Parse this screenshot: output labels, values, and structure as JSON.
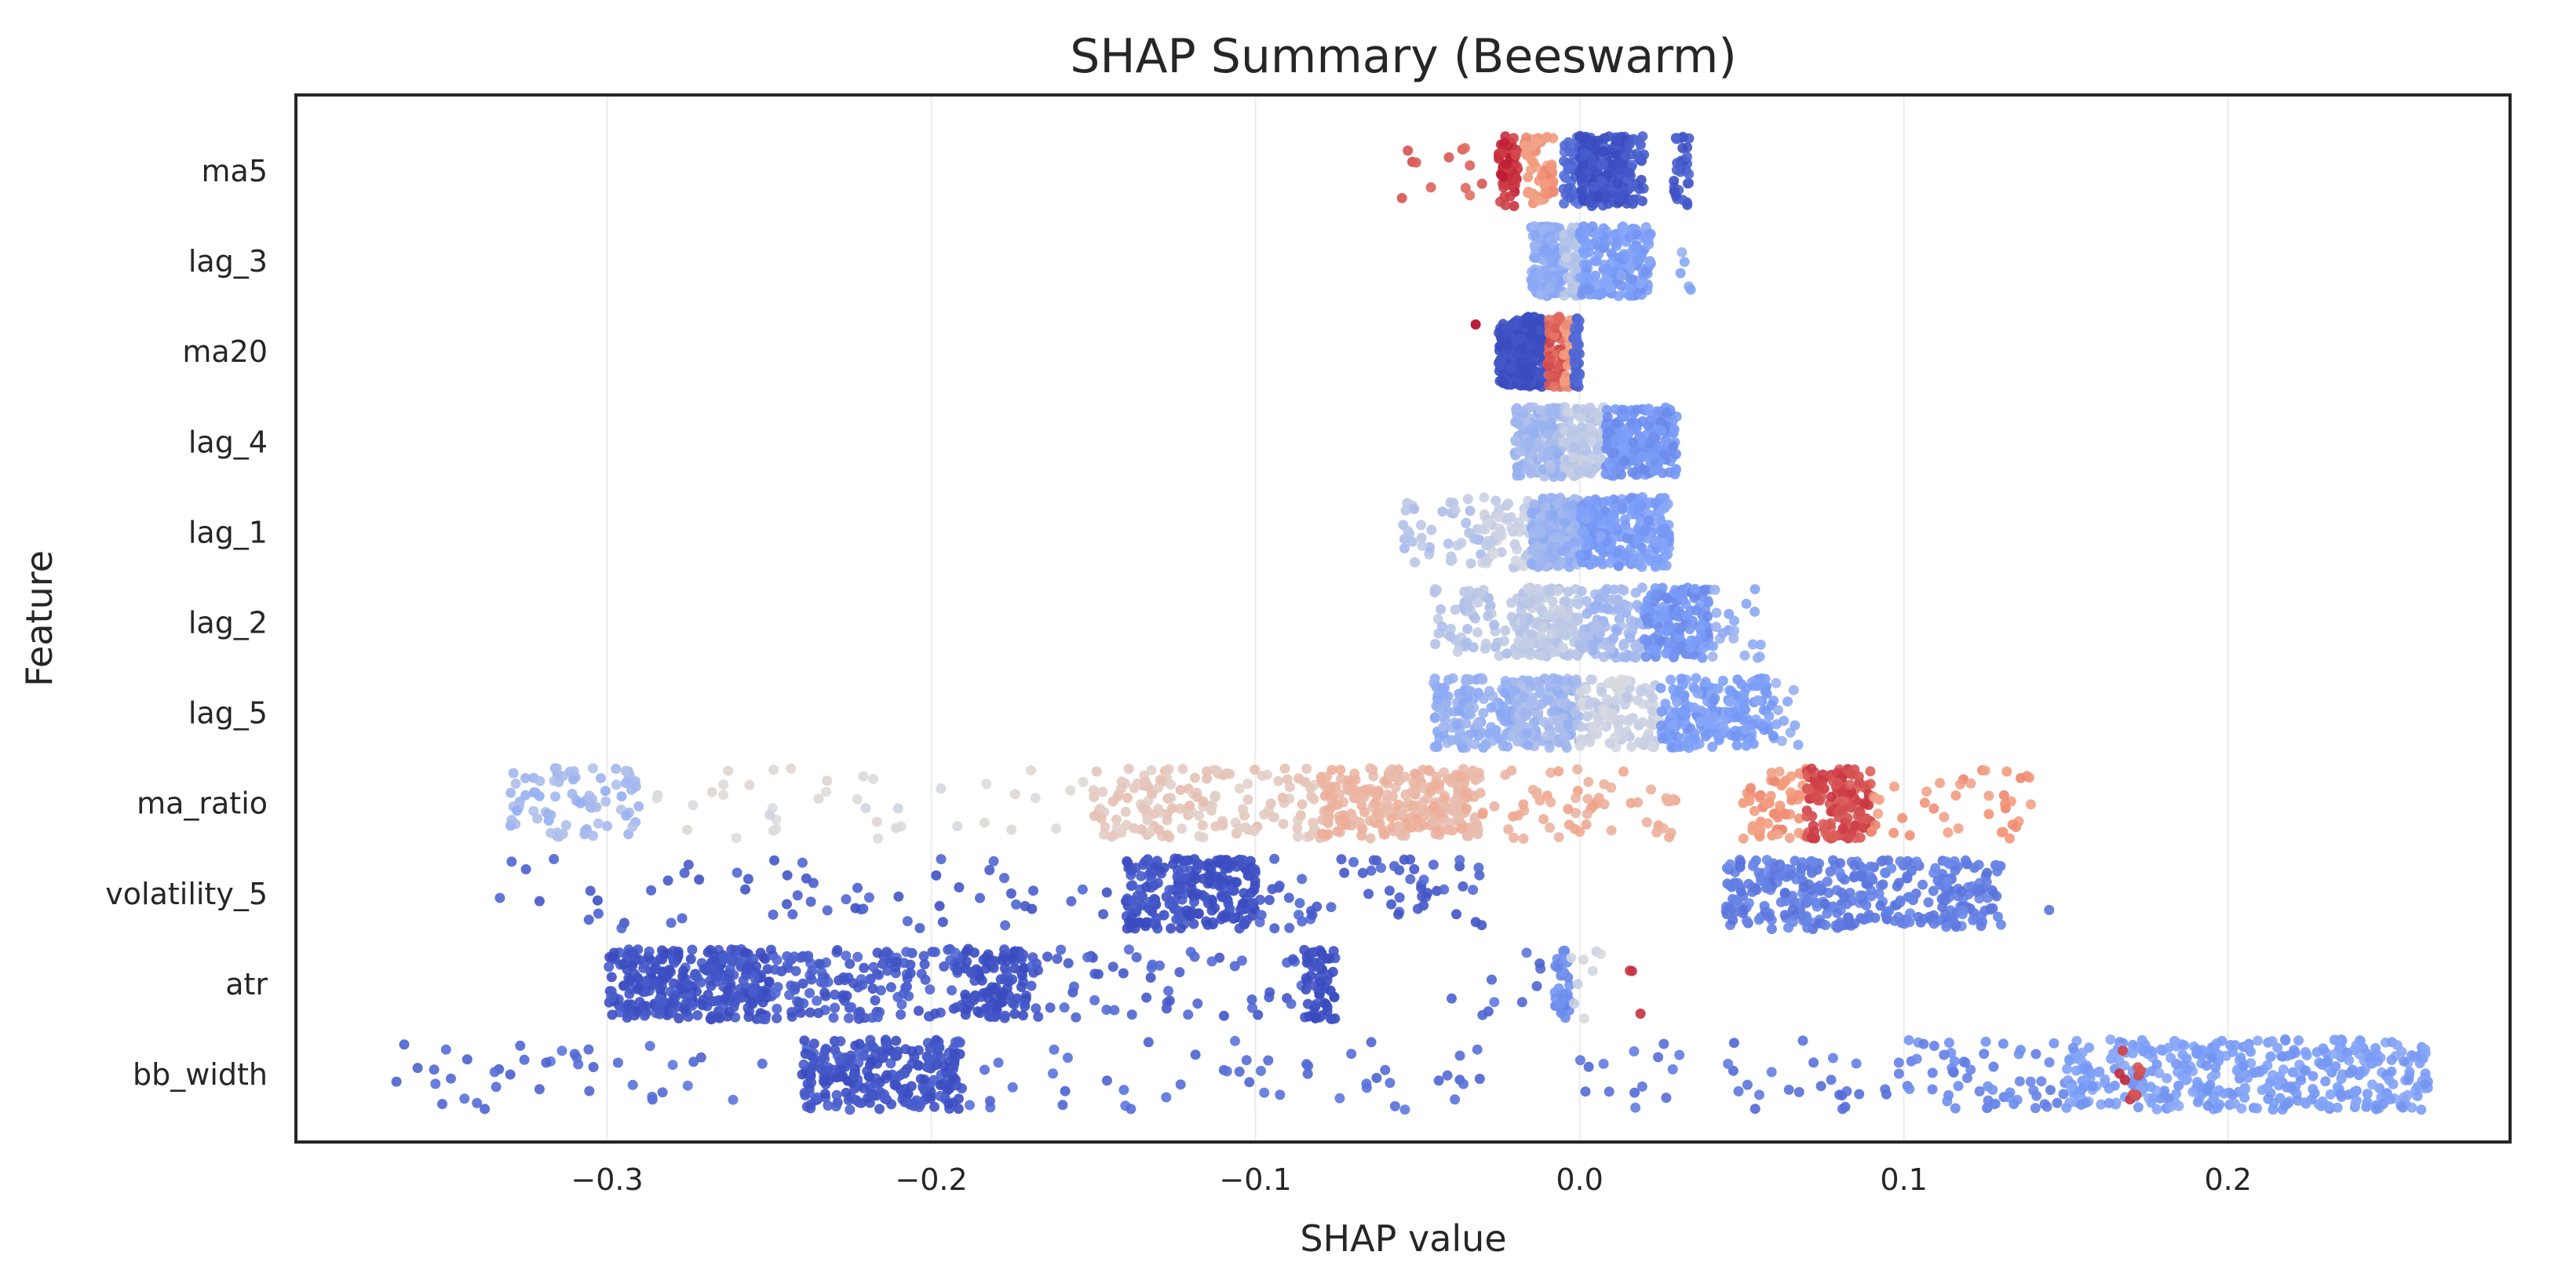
{
  "chart_data": {
    "type": "scatter",
    "subtype": "beeswarm",
    "title": "SHAP Summary (Beeswarm)",
    "xlabel": "SHAP value",
    "ylabel": "Feature",
    "xlim": [
      -0.396,
      0.287
    ],
    "xticks": [
      -0.3,
      -0.2,
      -0.1,
      0.0,
      0.1,
      0.2
    ],
    "xtick_labels": [
      "−0.3",
      "−0.2",
      "−0.1",
      "0.0",
      "0.1",
      "0.2"
    ],
    "grid": "vertical",
    "colormap": {
      "name": "coolwarm",
      "low": "#3b4cc0",
      "mid": "#dddddd",
      "high": "#b40426"
    },
    "features": [
      {
        "name": "ma5",
        "clusters": [
          {
            "range": [
              -0.06,
              -0.03
            ],
            "n": 12,
            "color_value": 0.85
          },
          {
            "range": [
              -0.025,
              -0.019
            ],
            "n": 60,
            "color_value": 0.92
          },
          {
            "range": [
              -0.017,
              -0.008
            ],
            "n": 60,
            "color_value": 0.75
          },
          {
            "range": [
              -0.005,
              0.0
            ],
            "n": 40,
            "color_value": 0.1
          },
          {
            "range": [
              0.0,
              0.015
            ],
            "n": 200,
            "color_value": 0.02
          },
          {
            "range": [
              0.015,
              0.02
            ],
            "n": 30,
            "color_value": 0.05
          },
          {
            "range": [
              0.029,
              0.034
            ],
            "n": 30,
            "color_value": 0.05
          }
        ]
      },
      {
        "name": "lag_3",
        "clusters": [
          {
            "range": [
              -0.015,
              -0.005
            ],
            "n": 150,
            "color_value": 0.3
          },
          {
            "range": [
              -0.005,
              0.0
            ],
            "n": 60,
            "color_value": 0.4
          },
          {
            "range": [
              0.0,
              0.022
            ],
            "n": 200,
            "color_value": 0.25
          },
          {
            "range": [
              0.028,
              0.035
            ],
            "n": 5,
            "color_value": 0.3
          }
        ]
      },
      {
        "name": "ma20",
        "clusters": [
          {
            "range": [
              -0.025,
              -0.01
            ],
            "n": 250,
            "color_value": 0.0
          },
          {
            "range": [
              -0.01,
              -0.005
            ],
            "n": 60,
            "color_value": 0.85
          },
          {
            "range": [
              -0.005,
              -0.002
            ],
            "n": 30,
            "color_value": 0.75
          },
          {
            "range": [
              -0.002,
              0.0
            ],
            "n": 40,
            "color_value": 0.08
          },
          {
            "range": [
              -0.033,
              -0.031
            ],
            "n": 1,
            "color_value": 0.98
          }
        ]
      },
      {
        "name": "lag_4",
        "clusters": [
          {
            "range": [
              -0.02,
              -0.005
            ],
            "n": 200,
            "color_value": 0.35
          },
          {
            "range": [
              -0.005,
              0.008
            ],
            "n": 100,
            "color_value": 0.42
          },
          {
            "range": [
              0.008,
              0.03
            ],
            "n": 200,
            "color_value": 0.22
          }
        ]
      },
      {
        "name": "lag_1",
        "clusters": [
          {
            "range": [
              -0.055,
              -0.03
            ],
            "n": 40,
            "color_value": 0.4
          },
          {
            "range": [
              -0.03,
              -0.015
            ],
            "n": 60,
            "color_value": 0.45
          },
          {
            "range": [
              -0.015,
              0.0
            ],
            "n": 200,
            "color_value": 0.33
          },
          {
            "range": [
              0.0,
              0.028
            ],
            "n": 250,
            "color_value": 0.25
          }
        ]
      },
      {
        "name": "lag_2",
        "clusters": [
          {
            "range": [
              -0.045,
              -0.02
            ],
            "n": 60,
            "color_value": 0.4
          },
          {
            "range": [
              -0.02,
              0.0
            ],
            "n": 150,
            "color_value": 0.42
          },
          {
            "range": [
              0.0,
              0.02
            ],
            "n": 100,
            "color_value": 0.35
          },
          {
            "range": [
              0.02,
              0.04
            ],
            "n": 150,
            "color_value": 0.22
          },
          {
            "range": [
              0.04,
              0.056
            ],
            "n": 20,
            "color_value": 0.3
          }
        ]
      },
      {
        "name": "lag_5",
        "clusters": [
          {
            "range": [
              -0.045,
              -0.02
            ],
            "n": 150,
            "color_value": 0.32
          },
          {
            "range": [
              -0.02,
              0.0
            ],
            "n": 150,
            "color_value": 0.35
          },
          {
            "range": [
              0.0,
              0.025
            ],
            "n": 120,
            "color_value": 0.45
          },
          {
            "range": [
              0.025,
              0.06
            ],
            "n": 200,
            "color_value": 0.25
          },
          {
            "range": [
              0.06,
              0.07
            ],
            "n": 10,
            "color_value": 0.3
          }
        ]
      },
      {
        "name": "ma_ratio",
        "clusters": [
          {
            "range": [
              -0.33,
              -0.29
            ],
            "n": 80,
            "color_value": 0.35
          },
          {
            "range": [
              -0.29,
              -0.15
            ],
            "n": 40,
            "color_value": 0.5
          },
          {
            "range": [
              -0.15,
              -0.08
            ],
            "n": 150,
            "color_value": 0.58
          },
          {
            "range": [
              -0.08,
              -0.03
            ],
            "n": 250,
            "color_value": 0.65
          },
          {
            "range": [
              -0.03,
              0.03
            ],
            "n": 60,
            "color_value": 0.68
          },
          {
            "range": [
              0.05,
              0.07
            ],
            "n": 60,
            "color_value": 0.75
          },
          {
            "range": [
              0.07,
              0.09
            ],
            "n": 150,
            "color_value": 0.88
          },
          {
            "range": [
              0.09,
              0.14
            ],
            "n": 40,
            "color_value": 0.75
          }
        ]
      },
      {
        "name": "volatility_5",
        "clusters": [
          {
            "range": [
              -0.335,
              -0.14
            ],
            "n": 60,
            "color_value": 0.05
          },
          {
            "range": [
              -0.14,
              -0.12
            ],
            "n": 120,
            "color_value": 0.02
          },
          {
            "range": [
              -0.12,
              -0.1
            ],
            "n": 120,
            "color_value": 0.0
          },
          {
            "range": [
              -0.1,
              -0.03
            ],
            "n": 60,
            "color_value": 0.06
          },
          {
            "range": [
              0.045,
              0.13
            ],
            "n": 350,
            "color_value": 0.15
          },
          {
            "range": [
              0.144,
              0.146
            ],
            "n": 1,
            "color_value": 0.15
          }
        ]
      },
      {
        "name": "atr",
        "clusters": [
          {
            "range": [
              -0.3,
              -0.25
            ],
            "n": 300,
            "color_value": 0.02
          },
          {
            "range": [
              -0.25,
              -0.19
            ],
            "n": 150,
            "color_value": 0.05
          },
          {
            "range": [
              -0.19,
              -0.17
            ],
            "n": 100,
            "color_value": 0.0
          },
          {
            "range": [
              -0.17,
              -0.085
            ],
            "n": 60,
            "color_value": 0.06
          },
          {
            "range": [
              -0.085,
              -0.075
            ],
            "n": 60,
            "color_value": 0.0
          },
          {
            "range": [
              -0.04,
              -0.01
            ],
            "n": 10,
            "color_value": 0.1
          },
          {
            "range": [
              -0.008,
              -0.003
            ],
            "n": 40,
            "color_value": 0.2
          },
          {
            "range": [
              -0.003,
              0.01
            ],
            "n": 8,
            "color_value": 0.45
          },
          {
            "range": [
              0.015,
              0.022
            ],
            "n": 3,
            "color_value": 0.95
          }
        ]
      },
      {
        "name": "bb_width",
        "clusters": [
          {
            "range": [
              -0.365,
              -0.24
            ],
            "n": 40,
            "color_value": 0.1
          },
          {
            "range": [
              -0.24,
              -0.19
            ],
            "n": 250,
            "color_value": 0.03
          },
          {
            "range": [
              -0.19,
              -0.03
            ],
            "n": 50,
            "color_value": 0.1
          },
          {
            "range": [
              0.0,
              0.1
            ],
            "n": 40,
            "color_value": 0.12
          },
          {
            "range": [
              0.1,
              0.15
            ],
            "n": 60,
            "color_value": 0.18
          },
          {
            "range": [
              0.15,
              0.262
            ],
            "n": 400,
            "color_value": 0.25
          },
          {
            "range": [
              0.165,
              0.175
            ],
            "n": 10,
            "color_value": 0.9
          }
        ]
      }
    ]
  }
}
